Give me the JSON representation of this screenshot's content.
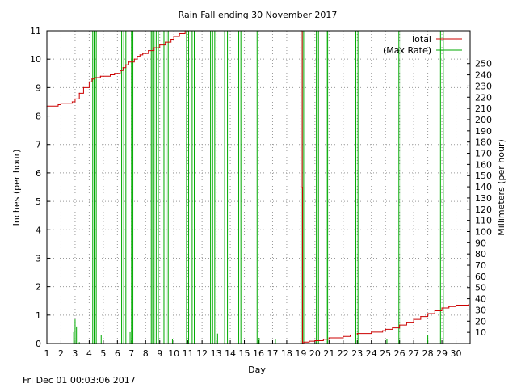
{
  "chart_data": {
    "type": "line",
    "title": "Rain Fall ending 30 November 2017",
    "xlabel": "Day",
    "ylabel": "Inches (per hour)",
    "y2label": "Millimeters (per hour)",
    "footer": "Fri Dec 01 00:03:06 2017",
    "xlim": [
      1,
      31
    ],
    "ylim": [
      0,
      11
    ],
    "y2lim": [
      0,
      279.4
    ],
    "x_ticks": [
      1,
      2,
      3,
      4,
      5,
      6,
      7,
      8,
      9,
      10,
      11,
      12,
      13,
      14,
      15,
      16,
      17,
      18,
      19,
      20,
      21,
      22,
      23,
      24,
      25,
      26,
      27,
      28,
      29,
      30
    ],
    "y_ticks": [
      0,
      1,
      2,
      3,
      4,
      5,
      6,
      7,
      8,
      9,
      10,
      11
    ],
    "y2_ticks": [
      10,
      20,
      30,
      40,
      50,
      60,
      70,
      80,
      90,
      100,
      110,
      120,
      130,
      140,
      150,
      160,
      170,
      180,
      190,
      200,
      210,
      220,
      230,
      240,
      250
    ],
    "grid": true,
    "legend_position": "top-right",
    "colors": {
      "total": "#cc0000",
      "rate": "#00aa00",
      "grid": "#999999"
    },
    "series": [
      {
        "name": "Total",
        "x": [
          1.0,
          1.8,
          2.0,
          2.8,
          3.0,
          3.3,
          3.6,
          4.0,
          4.2,
          4.4,
          4.6,
          4.8,
          5.0,
          5.5,
          5.8,
          6.2,
          6.4,
          6.6,
          6.8,
          7.2,
          7.4,
          7.6,
          7.8,
          8.2,
          8.6,
          9.0,
          9.4,
          9.8,
          10.0,
          10.4,
          10.8,
          11.0,
          11.5,
          19.05,
          19.1,
          19.12,
          19.2,
          19.6,
          20.0,
          20.6,
          21.0,
          22.0,
          22.5,
          23.0,
          24.0,
          24.8,
          25.0,
          25.5,
          26.0,
          26.5,
          27.0,
          27.5,
          28.0,
          28.5,
          29.0,
          29.5,
          30.0,
          30.9
        ],
        "y": [
          8.35,
          8.4,
          8.45,
          8.5,
          8.6,
          8.8,
          9.0,
          9.2,
          9.3,
          9.35,
          9.35,
          9.4,
          9.4,
          9.45,
          9.5,
          9.6,
          9.7,
          9.8,
          9.9,
          10.0,
          10.1,
          10.15,
          10.2,
          10.3,
          10.4,
          10.5,
          10.6,
          10.7,
          10.8,
          10.9,
          11.0,
          11.0,
          11.0,
          11.0,
          5.5,
          0.0,
          0.05,
          0.08,
          0.1,
          0.15,
          0.2,
          0.25,
          0.3,
          0.35,
          0.4,
          0.45,
          0.5,
          0.55,
          0.65,
          0.75,
          0.85,
          0.95,
          1.05,
          1.15,
          1.25,
          1.3,
          1.35,
          1.38
        ]
      },
      {
        "name": "(Max Rate)",
        "spikes": [
          [
            2.9,
            0.4
          ],
          [
            3.0,
            0.85
          ],
          [
            3.1,
            0.6
          ],
          [
            3.3,
            0.05
          ],
          [
            4.25,
            11
          ],
          [
            4.35,
            11
          ],
          [
            4.5,
            11
          ],
          [
            4.85,
            0.3
          ],
          [
            6.3,
            11
          ],
          [
            6.45,
            11
          ],
          [
            6.6,
            11
          ],
          [
            6.9,
            0.4
          ],
          [
            7.0,
            11
          ],
          [
            7.1,
            11
          ],
          [
            8.4,
            11
          ],
          [
            8.5,
            11
          ],
          [
            8.6,
            11
          ],
          [
            8.75,
            11
          ],
          [
            8.9,
            11
          ],
          [
            9.3,
            11
          ],
          [
            9.45,
            11
          ],
          [
            9.6,
            11
          ],
          [
            9.9,
            0.15
          ],
          [
            10.9,
            11
          ],
          [
            11.05,
            11
          ],
          [
            11.3,
            11
          ],
          [
            11.45,
            11
          ],
          [
            12.6,
            11
          ],
          [
            12.75,
            11
          ],
          [
            12.9,
            11
          ],
          [
            13.1,
            0.35
          ],
          [
            13.6,
            11
          ],
          [
            13.8,
            11
          ],
          [
            14.6,
            11
          ],
          [
            14.75,
            11
          ],
          [
            15.9,
            11
          ],
          [
            16.05,
            0.2
          ],
          [
            17.2,
            0.15
          ],
          [
            19.1,
            11
          ],
          [
            19.2,
            11
          ],
          [
            20.1,
            11
          ],
          [
            20.25,
            11
          ],
          [
            20.8,
            11
          ],
          [
            20.9,
            11
          ],
          [
            22.9,
            11
          ],
          [
            23.05,
            11
          ],
          [
            25.1,
            0.15
          ],
          [
            25.95,
            11
          ],
          [
            26.1,
            11
          ],
          [
            28.0,
            0.3
          ],
          [
            28.9,
            11
          ],
          [
            29.1,
            11
          ]
        ]
      }
    ]
  }
}
